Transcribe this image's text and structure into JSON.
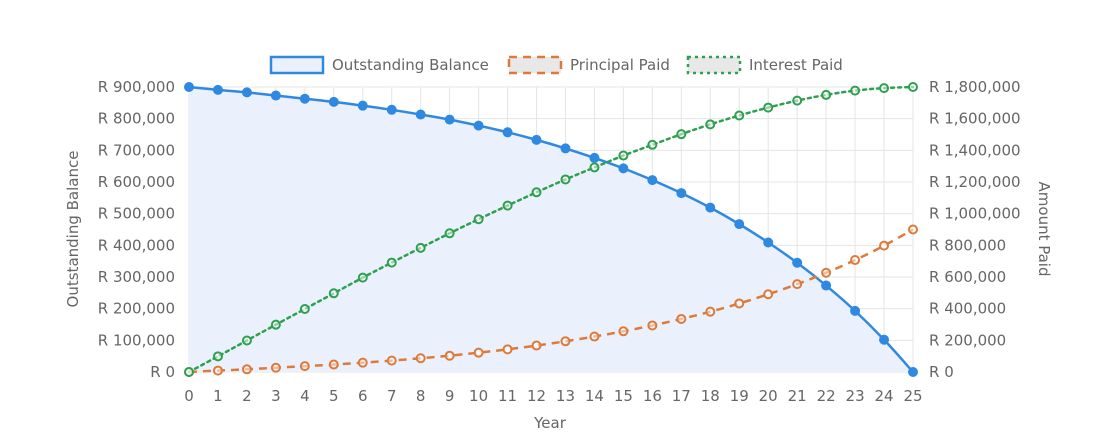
{
  "chart_data": {
    "type": "line",
    "x": [
      0,
      1,
      2,
      3,
      4,
      5,
      6,
      7,
      8,
      9,
      10,
      11,
      12,
      13,
      14,
      15,
      16,
      17,
      18,
      19,
      20,
      21,
      22,
      23,
      24,
      25
    ],
    "x_tick_labels": [
      "0",
      "1",
      "2",
      "3",
      "4",
      "5",
      "6",
      "7",
      "8",
      "9",
      "10",
      "11",
      "12",
      "13",
      "14",
      "15",
      "16",
      "17",
      "18",
      "19",
      "20",
      "21",
      "22",
      "23",
      "24",
      "25"
    ],
    "xlabel": "Year",
    "ylabel_left": "Outstanding Balance",
    "ylabel_right": "Amount Paid",
    "ylim_left": [
      0,
      900000
    ],
    "ylim_right": [
      0,
      1800000
    ],
    "y_ticks_left": [
      0,
      100000,
      200000,
      300000,
      400000,
      500000,
      600000,
      700000,
      800000,
      900000
    ],
    "y_ticks_right": [
      0,
      200000,
      400000,
      600000,
      800000,
      1000000,
      1200000,
      1400000,
      1600000,
      1800000
    ],
    "y_tick_labels_left": [
      "R 0",
      "R 100,000",
      "R 200,000",
      "R 300,000",
      "R 400,000",
      "R 500,000",
      "R 600,000",
      "R 700,000",
      "R 800,000",
      "R 900,000"
    ],
    "y_tick_labels_right": [
      "R 0",
      "R 200,000",
      "R 400,000",
      "R 600,000",
      "R 800,000",
      "R 1,000,000",
      "R 1,200,000",
      "R 1,400,000",
      "R 1,600,000",
      "R 1,800,000"
    ],
    "grid": true,
    "legend_position": "top-center",
    "series": [
      {
        "name": "Outstanding Balance",
        "axis": "left",
        "style": "solid",
        "fill": true,
        "color": "#2f89e0",
        "fill_color": "#eaf1fc",
        "values": [
          900000,
          891000,
          883000,
          873000,
          863000,
          853000,
          841000,
          828000,
          813000,
          797000,
          778000,
          757000,
          733000,
          706000,
          676000,
          643000,
          606000,
          565000,
          519000,
          467000,
          409000,
          345000,
          273000,
          193000,
          102000,
          0
        ]
      },
      {
        "name": "Principal Paid",
        "axis": "right",
        "style": "dashed",
        "fill": false,
        "color": "#dd7a3a",
        "legend_fill": "#e8e8e8",
        "values": [
          0,
          9000,
          17000,
          27000,
          37000,
          47000,
          59000,
          72000,
          87000,
          103000,
          122000,
          143000,
          167000,
          194000,
          224000,
          257000,
          294000,
          335000,
          381000,
          433000,
          491000,
          555000,
          627000,
          707000,
          798000,
          900000
        ]
      },
      {
        "name": "Interest Paid",
        "axis": "right",
        "style": "dotted",
        "fill": false,
        "color": "#2ea04f",
        "legend_fill": "#e8e8e8",
        "values": [
          0,
          99000,
          199000,
          299000,
          398000,
          497000,
          596000,
          691000,
          784000,
          876000,
          965000,
          1051000,
          1135000,
          1216000,
          1292000,
          1367000,
          1435000,
          1502000,
          1564000,
          1620000,
          1670000,
          1714000,
          1750000,
          1777000,
          1793000,
          1800000
        ]
      }
    ]
  }
}
